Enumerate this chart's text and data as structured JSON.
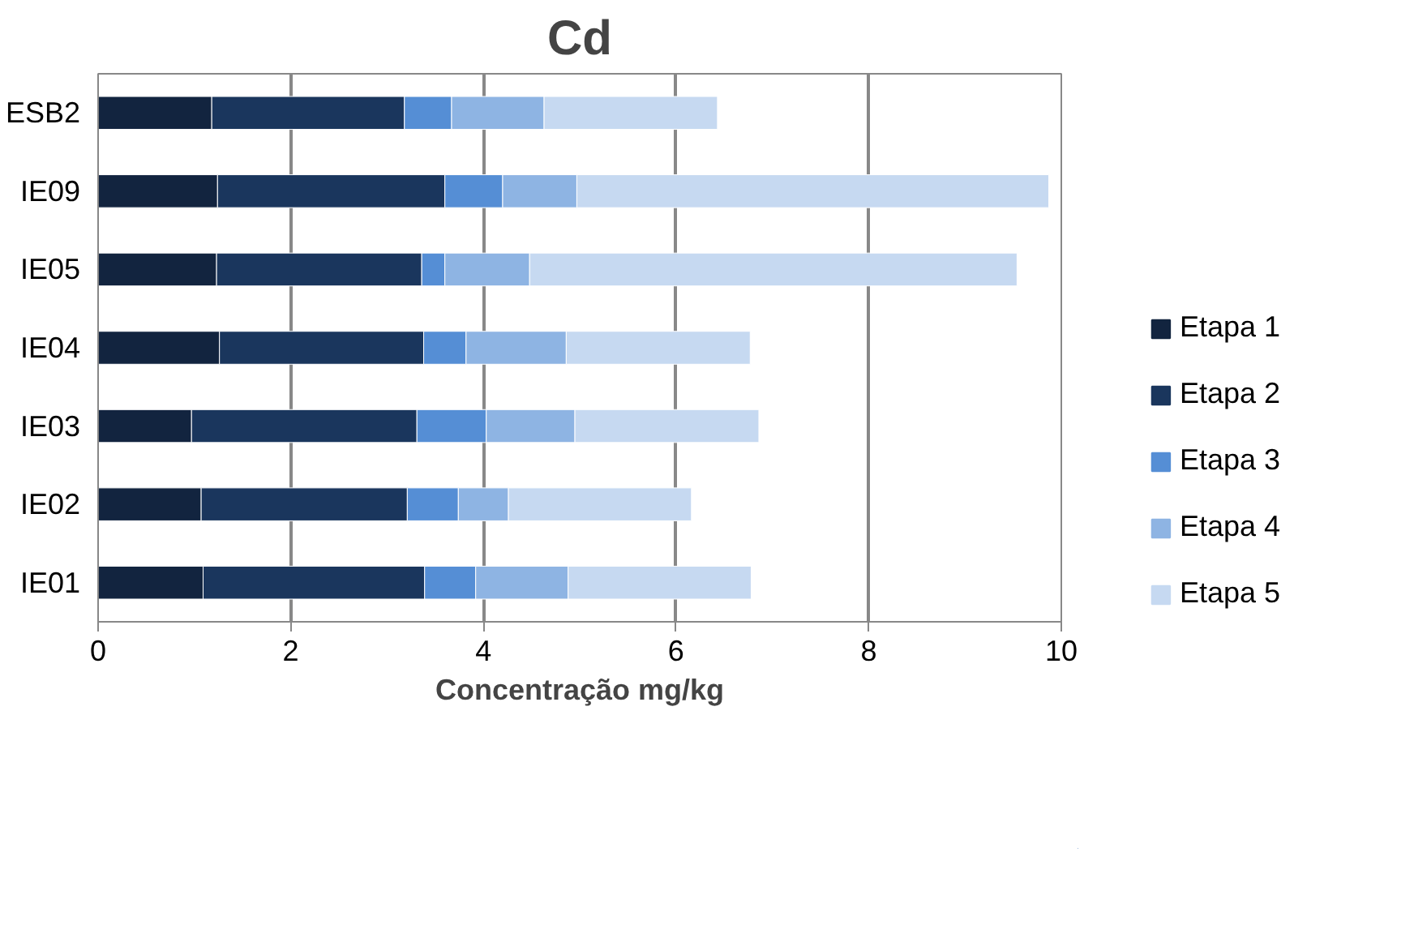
{
  "chart_data": {
    "type": "bar",
    "orientation": "horizontal",
    "stacked": true,
    "title": "Cd",
    "xlabel": "Concentração mg/kg",
    "categories": [
      "ESB2",
      "IE09",
      "IE05",
      "IE04",
      "IE03",
      "IE02",
      "IE01"
    ],
    "series": [
      {
        "name": "Etapa 1",
        "color": "#12243f",
        "values": [
          1.18,
          1.24,
          1.23,
          1.26,
          0.97,
          1.07,
          1.09
        ]
      },
      {
        "name": "Etapa 2",
        "color": "#1a365d",
        "values": [
          2.0,
          2.36,
          2.13,
          2.12,
          2.34,
          2.14,
          2.3
        ]
      },
      {
        "name": "Etapa 3",
        "color": "#558ed5",
        "values": [
          0.49,
          0.6,
          0.24,
          0.44,
          0.72,
          0.53,
          0.53
        ]
      },
      {
        "name": "Etapa 4",
        "color": "#8eb4e3",
        "values": [
          0.96,
          0.77,
          0.88,
          1.04,
          0.92,
          0.52,
          0.96
        ]
      },
      {
        "name": "Etapa 5",
        "color": "#c6d9f1",
        "values": [
          1.8,
          4.9,
          5.06,
          1.91,
          1.91,
          1.9,
          1.9
        ]
      }
    ],
    "xlim": [
      0,
      10
    ],
    "xticks": [
      0,
      2,
      4,
      6,
      8,
      10
    ],
    "grid": "x",
    "legend": "right"
  }
}
